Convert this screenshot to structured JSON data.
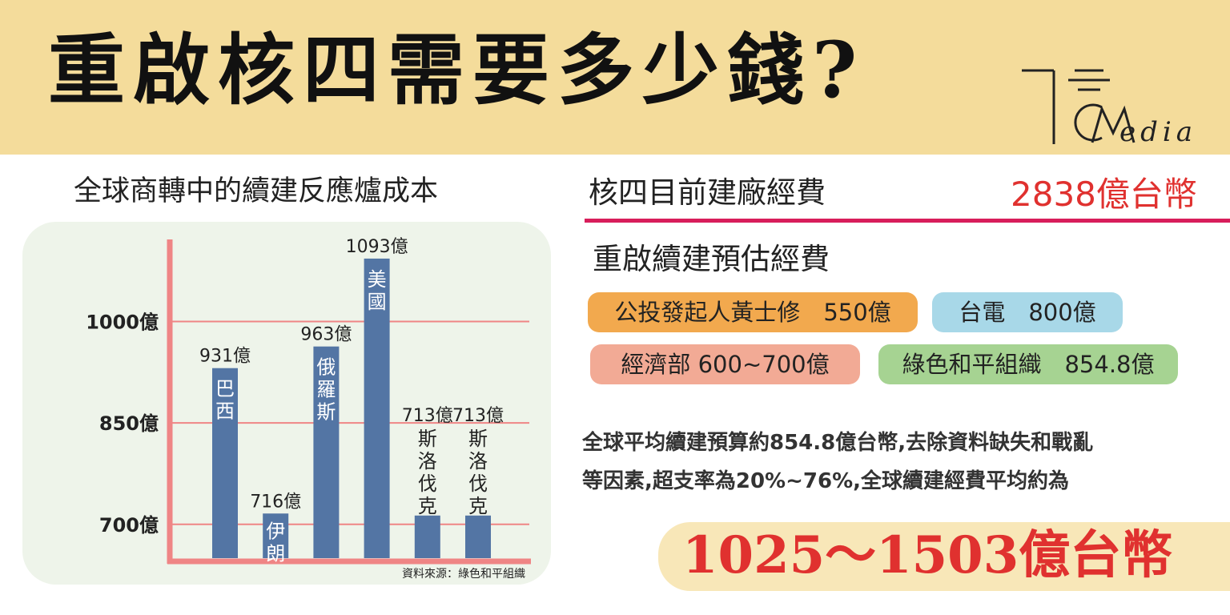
{
  "header": {
    "title": "重啟核四需要多少錢?",
    "logo_text": "edia",
    "logo_icon": "tcmedia-logo-icon"
  },
  "chart_data": {
    "type": "bar",
    "title": "全球商轉中的續建反應爐成本",
    "categories": [
      "巴西",
      "伊朗",
      "俄羅斯",
      "美國",
      "斯洛伐克",
      "斯洛伐克"
    ],
    "values": [
      931,
      716,
      963,
      1093,
      713,
      713
    ],
    "value_labels": [
      "931億",
      "716億",
      "963億",
      "1093億",
      "713億",
      "713億"
    ],
    "y_ticks": [
      700,
      850,
      1000
    ],
    "y_tick_labels": [
      "700億",
      "850億",
      "1000億"
    ],
    "ylim": [
      650,
      1100
    ],
    "source": "資料來源：綠色和平組織",
    "bar_color": "#5375a4",
    "axis_color": "#ef8585",
    "grid": true
  },
  "budget": {
    "current_label": "核四目前建廠經費",
    "current_value": "2838億台幣",
    "restart_label": "重啟續建預估經費",
    "estimates": [
      {
        "text": "公投發起人黃士修　550億",
        "color": "#f2a94e"
      },
      {
        "text": "台電　800億",
        "color": "#a8d8e8"
      },
      {
        "text": "經濟部 600~700億",
        "color": "#f2aa95"
      },
      {
        "text": "綠色和平組織　854.8億",
        "color": "#a6d392"
      }
    ]
  },
  "summary": {
    "line1": "全球平均續建預算約854.8億台幣,去除資料缺失和戰亂",
    "line2": "等因素,超支率為20%~76%,全球續建經費平均約為",
    "result": "1025～1503億台幣"
  }
}
